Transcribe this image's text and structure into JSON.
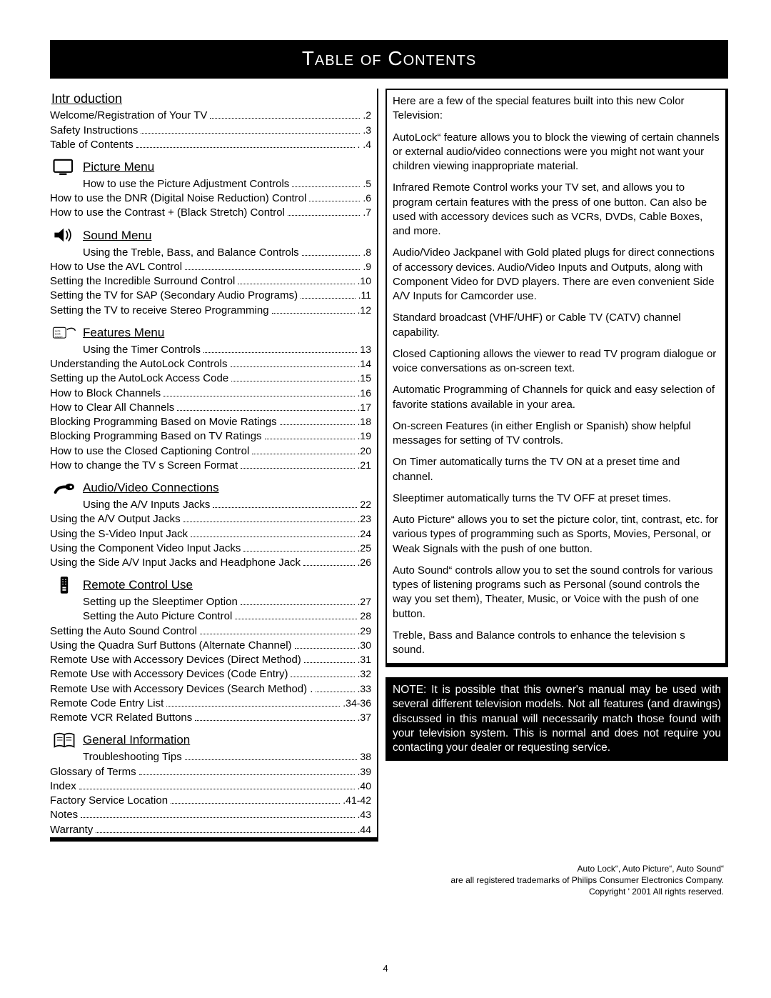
{
  "title": "Table of Contents",
  "page_number": "4",
  "left": {
    "intro_head": "Intr oduction",
    "intro_items": [
      {
        "label": "Welcome/Registration of Your TV",
        "page": ".2"
      },
      {
        "label": "Safety Instructions",
        "page": ".3"
      },
      {
        "label": "Table of Contents",
        "page": ". .4"
      }
    ],
    "sections": [
      {
        "head": "Picture Menu",
        "icon": "tv-icon",
        "items": [
          {
            "label": "How to use the Picture Adjustment Controls",
            "page": ".5",
            "indent": true
          },
          {
            "label": "How to use the DNR (Digital Noise Reduction) Control",
            "page": ".6"
          },
          {
            "label": "How to use the Contrast + (Black Stretch) Control",
            "page": ".7"
          }
        ]
      },
      {
        "head": "Sound Menu",
        "icon": "speaker-icon",
        "items": [
          {
            "label": "Using the Treble, Bass, and Balance Controls",
            "page": ".8",
            "indent": true
          },
          {
            "label": "How to Use the AVL Control",
            "page": ".9"
          },
          {
            "label": "Setting the Incredible Surround Control",
            "page": ".10"
          },
          {
            "label": "Setting the TV for SAP (Secondary Audio Programs)",
            "page": ".11"
          },
          {
            "label": "Setting the TV to receive Stereo Programming",
            "page": ".12"
          }
        ]
      },
      {
        "head": "Features Menu",
        "icon": "look-inside-icon",
        "items": [
          {
            "label": "Using the Timer Controls",
            "page": "13",
            "indent": true
          },
          {
            "label": "Understanding the AutoLock Controls",
            "page": ".14"
          },
          {
            "label": "Setting up the AutoLock Access Code",
            "page": ".15"
          },
          {
            "label": "How to Block Channels",
            "page": ".16"
          },
          {
            "label": "How to Clear All Channels",
            "page": ".17"
          },
          {
            "label": "Blocking Programming Based on Movie Ratings",
            "page": ".18"
          },
          {
            "label": "Blocking Programming Based on TV Ratings",
            "page": ".19"
          },
          {
            "label": "How to use the Closed Captioning Control",
            "page": ".20"
          },
          {
            "label": "How to change the TV s Screen Format",
            "page": ".21"
          }
        ]
      },
      {
        "head": "Audio/Video Connections",
        "icon": "plug-icon",
        "items": [
          {
            "label": "Using the A/V Inputs Jacks",
            "page": "22",
            "indent": true
          },
          {
            "label": "Using the A/V Output Jacks",
            "page": ".23"
          },
          {
            "label": "Using the S-Video Input Jack",
            "page": ".24"
          },
          {
            "label": "Using the Component Video Input Jacks",
            "page": ".25"
          },
          {
            "label": "Using the Side A/V Input Jacks and Headphone Jack",
            "page": ".26"
          }
        ]
      },
      {
        "head": "Remote Control Use",
        "icon": "remote-icon",
        "items": [
          {
            "label": "Setting up the Sleeptimer Option",
            "page": ".27",
            "indent": true
          },
          {
            "label": "Setting the Auto Picture Control",
            "page": "28",
            "indent": true
          },
          {
            "label": "Setting the Auto Sound Control",
            "page": ".29"
          },
          {
            "label": "Using the Quadra Surf Buttons (Alternate Channel)",
            "page": ".30"
          },
          {
            "label": "Remote Use with Accessory Devices (Direct Method)",
            "page": ".31"
          },
          {
            "label": "Remote Use with Accessory Devices (Code Entry)",
            "page": ".32"
          },
          {
            "label": "Remote Use with Accessory Devices (Search Method) .",
            "page": ".33"
          },
          {
            "label": "Remote Code Entry List",
            "page": ".34-36"
          },
          {
            "label": "Remote VCR Related Buttons",
            "page": ".37"
          }
        ]
      },
      {
        "head": "General Information",
        "icon": "book-icon",
        "items": [
          {
            "label": "Troubleshooting Tips",
            "page": "38",
            "indent": true
          },
          {
            "label": "Glossary of Terms",
            "page": ".39"
          },
          {
            "label": "Index",
            "page": ".40"
          },
          {
            "label": "Factory Service Location",
            "page": ".41-42"
          },
          {
            "label": "Notes",
            "page": ".43"
          },
          {
            "label": "Warranty",
            "page": ".44"
          }
        ]
      }
    ]
  },
  "right": {
    "intro": "Here are a few of the special features built into this new Color Television:",
    "features": [
      "AutoLock“   feature allows you to block the viewing of certain channels or external audio/video connections were you might not want your children viewing inappropriate material.",
      "Infrared Remote Control works your TV set, and allows you to program certain features with the press of one button. Can also be used with accessory devices such as VCRs, DVDs, Cable Boxes, and more.",
      "Audio/Video Jackpanel with Gold plated plugs for direct connections of accessory devices. Audio/Video Inputs and Outputs, along with Component Video for DVD players. There are even convenient Side A/V Inputs for Camcorder use.",
      "Standard broadcast (VHF/UHF) or Cable TV (CATV) channel capability.",
      "Closed Captioning allows the viewer to read TV program dialogue or voice conversations as on-screen text.",
      "Automatic Programming of Channels for quick and easy selection of favorite stations available in your area.",
      "On-screen Features (in either English or Spanish) show helpful messages for setting of TV controls.",
      "On Timer automatically turns the TV ON at a preset time and channel.",
      "Sleeptimer automatically turns the TV OFF at preset times.",
      "Auto Picture“   allows you to set the picture color, tint, contrast, etc. for various types of programming such as Sports, Movies, Personal, or Weak Signals with the push of one button.",
      "Auto Sound“   controls allow you to set the sound controls for various types of listening programs such as Personal (sound controls the way you set them), Theater, Music, or Voice with the push of one button.",
      "Treble, Bass and Balance controls to enhance the television s sound."
    ],
    "note": "NOTE: It is possible that this owner's manual may be used with several different television models.  Not all features (and  drawings) discussed in this manual will necessarily match those found with your television system. This is normal and does not require you contacting your dealer or requesting service."
  },
  "trademark": {
    "l1": "Auto Lock“, Auto Picture“, Auto Sound“",
    "l2": "are all registered trademarks of  Philips Consumer Electronics Company.",
    "l3": "Copyright ' 2001   All rights reserved."
  }
}
